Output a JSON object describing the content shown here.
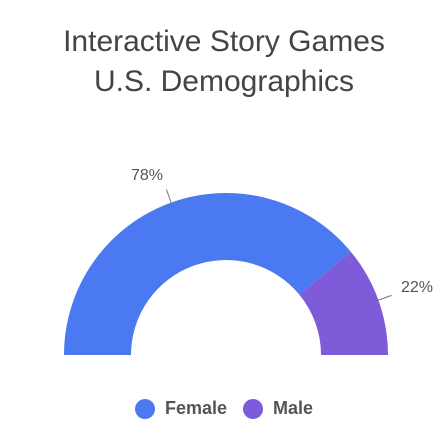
{
  "chart_data": {
    "type": "pie",
    "variant": "semicircle-donut",
    "title": [
      "Interactive Story Games",
      "U.S. Demographics"
    ],
    "categories": [
      "Female",
      "Male"
    ],
    "values": [
      78,
      22
    ],
    "labels": [
      "78%",
      "22%"
    ],
    "colors": [
      "#4B79F2",
      "#7E5BD9"
    ],
    "legend": {
      "position": "bottom",
      "entries": [
        "Female",
        "Male"
      ]
    }
  }
}
